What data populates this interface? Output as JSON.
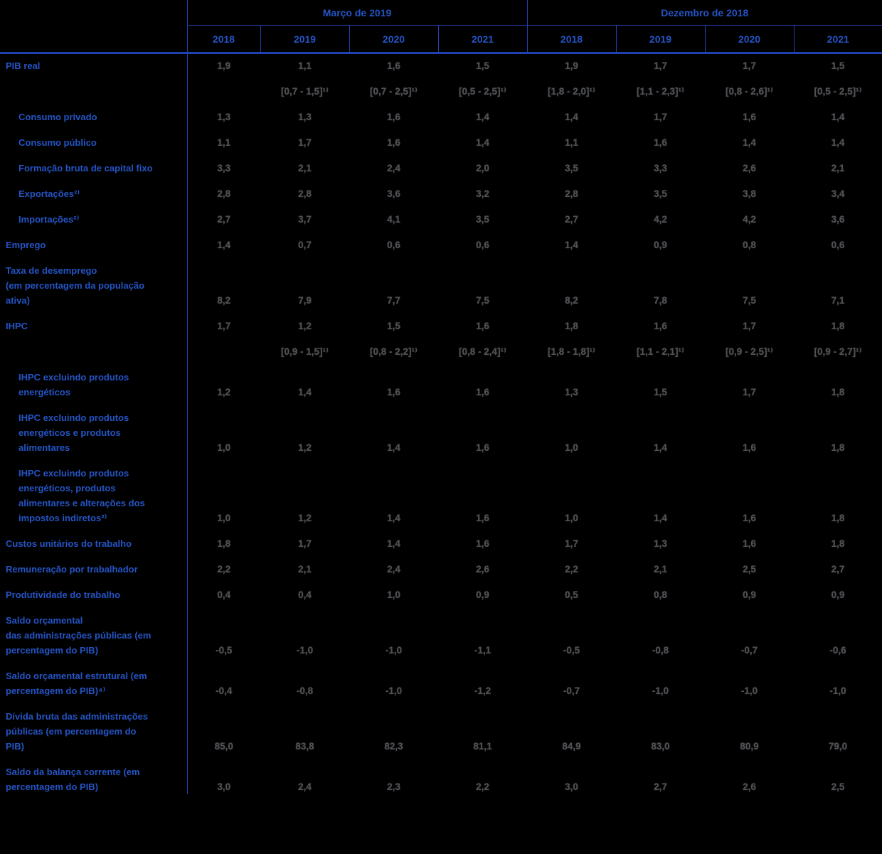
{
  "colors": {
    "accent_blue": "#2454c4",
    "line_blue": "#2041b0",
    "number_gray": "#4e5054",
    "background": "#000000"
  },
  "table": {
    "groups": [
      {
        "label": "Março de 2019",
        "years": [
          "2018",
          "2019",
          "2020",
          "2021"
        ]
      },
      {
        "label": "Dezembro de 2018",
        "years": [
          "2018",
          "2019",
          "2020",
          "2021"
        ]
      }
    ],
    "rows": [
      {
        "label": "PIB real",
        "indent": false,
        "values": [
          "1,9",
          "1,1",
          "1,6",
          "1,5",
          "1,9",
          "1,7",
          "1,7",
          "1,5"
        ],
        "ranges": [
          "",
          "[0,7 - 1,5]¹⁾",
          "[0,7 - 2,5]¹⁾",
          "[0,5 - 2,5]¹⁾",
          "[1,8 - 2,0]¹⁾",
          "[1,1 - 2,3]¹⁾",
          "[0,8 - 2,6]¹⁾",
          "[0,5 - 2,5]¹⁾"
        ]
      },
      {
        "label": "Consumo privado",
        "indent": true,
        "values": [
          "1,3",
          "1,3",
          "1,6",
          "1,4",
          "1,4",
          "1,7",
          "1,6",
          "1,4"
        ]
      },
      {
        "label": "Consumo público",
        "indent": true,
        "values": [
          "1,1",
          "1,7",
          "1,6",
          "1,4",
          "1,1",
          "1,6",
          "1,4",
          "1,4"
        ]
      },
      {
        "label": "Formação bruta de capital fixo",
        "indent": true,
        "values": [
          "3,3",
          "2,1",
          "2,4",
          "2,0",
          "3,5",
          "3,3",
          "2,6",
          "2,1"
        ]
      },
      {
        "label": "Exportações²⁾",
        "indent": true,
        "values": [
          "2,8",
          "2,8",
          "3,6",
          "3,2",
          "2,8",
          "3,5",
          "3,8",
          "3,4"
        ]
      },
      {
        "label": "Importações²⁾",
        "indent": true,
        "values": [
          "2,7",
          "3,7",
          "4,1",
          "3,5",
          "2,7",
          "4,2",
          "4,2",
          "3,6"
        ]
      },
      {
        "label": "Emprego",
        "indent": false,
        "values": [
          "1,4",
          "0,7",
          "0,6",
          "0,6",
          "1,4",
          "0,9",
          "0,8",
          "0,6"
        ]
      },
      {
        "label": "Taxa de desemprego\n(em percentagem da população\nativa)",
        "indent": false,
        "values": [
          "8,2",
          "7,9",
          "7,7",
          "7,5",
          "8,2",
          "7,8",
          "7,5",
          "7,1"
        ]
      },
      {
        "label": "IHPC",
        "indent": false,
        "values": [
          "1,7",
          "1,2",
          "1,5",
          "1,6",
          "1,8",
          "1,6",
          "1,7",
          "1,8"
        ],
        "ranges": [
          "",
          "[0,9 - 1,5]¹⁾",
          "[0,8 - 2,2]¹⁾",
          "[0,8 - 2,4]¹⁾",
          "[1,8 - 1,8]¹⁾",
          "[1,1 - 2,1]¹⁾",
          "[0,9 - 2,5]¹⁾",
          "[0,9 - 2,7]¹⁾"
        ]
      },
      {
        "label": "IHPC excluindo produtos\nenergéticos",
        "indent": true,
        "values": [
          "1,2",
          "1,4",
          "1,6",
          "1,6",
          "1,3",
          "1,5",
          "1,7",
          "1,8"
        ]
      },
      {
        "label": "IHPC excluindo produtos\nenergéticos e produtos\nalimentares",
        "indent": true,
        "values": [
          "1,0",
          "1,2",
          "1,4",
          "1,6",
          "1,0",
          "1,4",
          "1,6",
          "1,8"
        ]
      },
      {
        "label": "IHPC excluindo produtos\nenergéticos, produtos\nalimentares e alterações dos\nimpostos indiretos³⁾",
        "indent": true,
        "values": [
          "1,0",
          "1,2",
          "1,4",
          "1,6",
          "1,0",
          "1,4",
          "1,6",
          "1,8"
        ]
      },
      {
        "label": "Custos unitários do trabalho",
        "indent": false,
        "values": [
          "1,8",
          "1,7",
          "1,4",
          "1,6",
          "1,7",
          "1,3",
          "1,6",
          "1,8"
        ]
      },
      {
        "label": "Remuneração por trabalhador",
        "indent": false,
        "values": [
          "2,2",
          "2,1",
          "2,4",
          "2,6",
          "2,2",
          "2,1",
          "2,5",
          "2,7"
        ]
      },
      {
        "label": "Produtividade do trabalho",
        "indent": false,
        "values": [
          "0,4",
          "0,4",
          "1,0",
          "0,9",
          "0,5",
          "0,8",
          "0,9",
          "0,9"
        ]
      },
      {
        "label": "Saldo orçamental\ndas administrações públicas (em\npercentagem do PIB)",
        "indent": false,
        "values": [
          "-0,5",
          "-1,0",
          "-1,0",
          "-1,1",
          "-0,5",
          "-0,8",
          "-0,7",
          "-0,6"
        ]
      },
      {
        "label": "Saldo orçamental estrutural (em\npercentagem do PIB)⁴⁾",
        "indent": false,
        "values": [
          "-0,4",
          "-0,8",
          "-1,0",
          "-1,2",
          "-0,7",
          "-1,0",
          "-1,0",
          "-1,0"
        ]
      },
      {
        "label": "Dívida bruta das administrações\npúblicas (em percentagem do\nPIB)",
        "indent": false,
        "values": [
          "85,0",
          "83,8",
          "82,3",
          "81,1",
          "84,9",
          "83,0",
          "80,9",
          "79,0"
        ]
      },
      {
        "label": "Saldo da balança corrente (em\npercentagem do PIB)",
        "indent": false,
        "values": [
          "3,0",
          "2,4",
          "2,3",
          "2,2",
          "3,0",
          "2,7",
          "2,6",
          "2,5"
        ]
      }
    ]
  }
}
